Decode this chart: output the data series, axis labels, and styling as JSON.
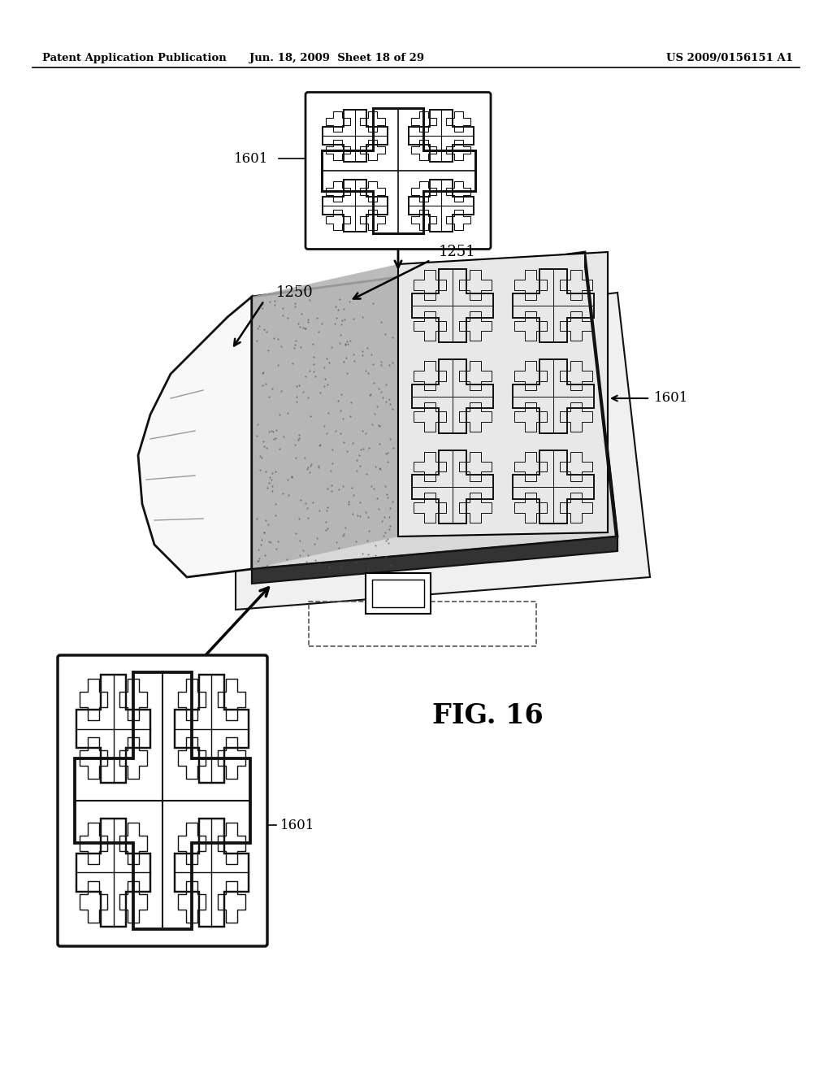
{
  "background_color": "#ffffff",
  "header_left": "Patent Application Publication",
  "header_center": "Jun. 18, 2009  Sheet 18 of 29",
  "header_right": "US 2009/0156151 A1",
  "fig_label": "FIG. 16",
  "labels": {
    "1601_top": "1601",
    "1250": "1250",
    "1251": "1251",
    "1601_mid": "1601",
    "1601_bot": "1601"
  },
  "colors": {
    "black": "#111111",
    "dark_gray": "#333333",
    "mid_gray": "#888888",
    "light_gray": "#cccccc",
    "board_top": "#d8d8d8",
    "board_side": "#444444",
    "shade_gray": "#aaaaaa",
    "white": "#ffffff"
  }
}
